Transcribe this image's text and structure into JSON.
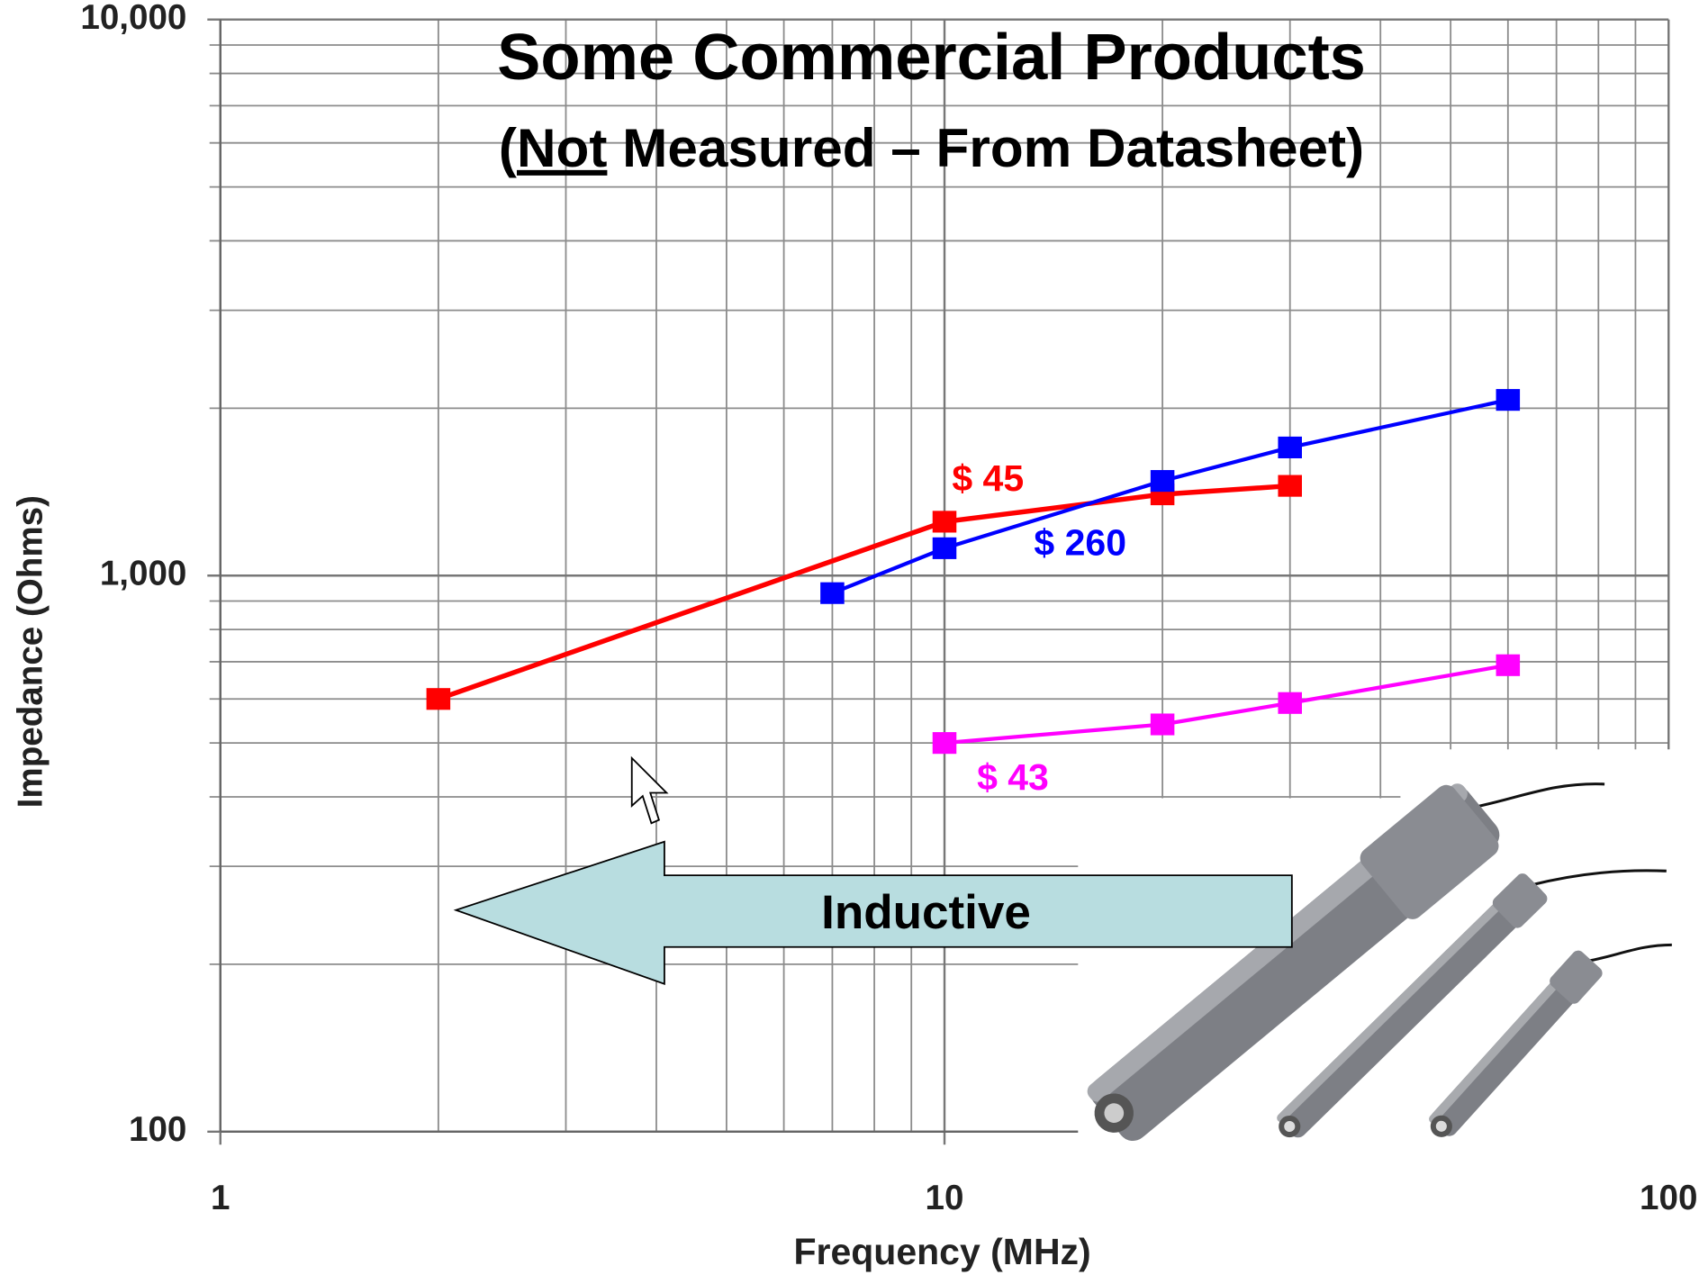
{
  "chart_data": {
    "type": "line",
    "title": "Some Commercial Products",
    "subtitle_parts": [
      "(",
      "Not",
      " Measured – From Datasheet)"
    ],
    "x_label": "Frequency (MHz)",
    "y_label": "Impedance (Ohms)",
    "annotation": "Inductive",
    "log_x": true,
    "log_y": true,
    "grid": true,
    "xlim": [
      1,
      100
    ],
    "ylim": [
      100,
      10000
    ],
    "xticks": [
      1,
      10,
      100
    ],
    "yticks": [
      {
        "value": 100,
        "label": "100"
      },
      {
        "value": 1000,
        "label": "1,000"
      },
      {
        "value": 10000,
        "label": "10,000"
      }
    ],
    "series": [
      {
        "name": "$ 45",
        "color": "#ff0000",
        "x": [
          2,
          10,
          20,
          30
        ],
        "values": [
          600,
          1250,
          1400,
          1450
        ]
      },
      {
        "name": "$ 260",
        "color": "#0000ff",
        "x": [
          7,
          10,
          20,
          30,
          60
        ],
        "values": [
          930,
          1120,
          1480,
          1700,
          2070
        ]
      },
      {
        "name": "$ 43",
        "color": "#ff00ff",
        "x": [
          10,
          20,
          30,
          60
        ],
        "values": [
          500,
          540,
          590,
          690
        ]
      }
    ]
  }
}
